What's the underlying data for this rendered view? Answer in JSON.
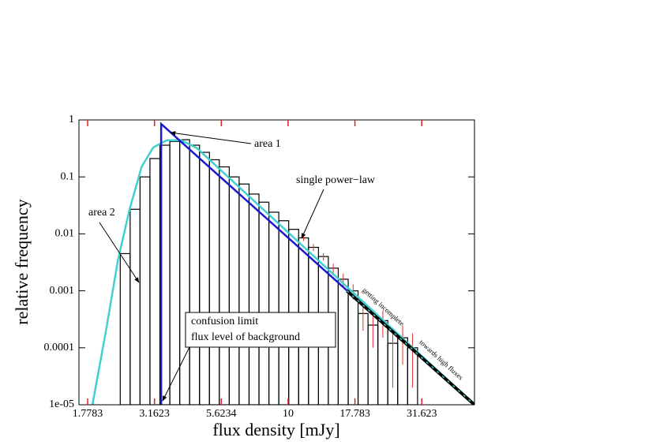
{
  "chart_data": {
    "type": "histogram",
    "xlabel": "flux density [mJy]",
    "ylabel": "relative frequency",
    "xscale": "log",
    "yscale": "log",
    "xlim": [
      1.65,
      49.8
    ],
    "ylim": [
      1e-05,
      1
    ],
    "xticks": [
      1.7783,
      3.1623,
      5.6234,
      10,
      17.783,
      31.623
    ],
    "yticks": [
      1,
      0.1,
      0.01,
      0.001,
      0.0001,
      {
        "value": 1e-05,
        "label": "1e-05"
      }
    ],
    "tick_color": "#e02020",
    "bins": [
      2.355,
      2.565,
      2.793,
      3.042,
      3.314,
      3.609,
      3.93,
      4.28,
      4.662,
      5.078,
      5.53,
      6.023,
      6.559,
      7.144,
      7.78,
      8.474,
      9.228,
      10.05,
      10.95,
      11.92,
      12.99,
      14.14,
      15.4,
      16.78,
      18.27,
      19.9,
      21.67,
      23.6,
      25.7,
      28.0,
      30.5
    ],
    "counts": [
      0.0045,
      0.027,
      0.1,
      0.21,
      0.36,
      0.42,
      0.45,
      0.36,
      0.27,
      0.2,
      0.15,
      0.1,
      0.075,
      0.05,
      0.036,
      0.024,
      0.017,
      0.012,
      0.0085,
      0.0058,
      0.004,
      0.0025,
      0.0016,
      0.001,
      0.0004,
      0.00025,
      0.0003,
      0.00012,
      0.00015,
      0.0001
    ],
    "errors": [
      null,
      null,
      null,
      null,
      null,
      null,
      null,
      null,
      null,
      null,
      null,
      null,
      null,
      null,
      null,
      null,
      null,
      null,
      0.001,
      0.0008,
      0.0006,
      0.0005,
      0.0004,
      0.0003,
      0.0002,
      0.00015,
      0.00015,
      0.0001,
      0.0001,
      8e-05
    ],
    "color": "#000000",
    "error_color": "#e03030",
    "lines": [
      {
        "color": "#40d0d0",
        "x": [
          1.853,
          2.083,
          2.307,
          2.553,
          2.83,
          3.13,
          3.52,
          3.98,
          4.56,
          49.8
        ],
        "values": [
          1e-05,
          0.0002,
          0.0034,
          0.027,
          0.15,
          0.33,
          0.44,
          0.44,
          0.32,
          1e-05
        ]
      },
      {
        "color": "#1a1acc",
        "x": [
          3.35,
          3.35,
          49.8
        ],
        "values": [
          1e-05,
          0.85,
          1e-05
        ]
      },
      {
        "color": "#000000",
        "dash": true,
        "x": [
          16.6,
          49.8
        ],
        "values": [
          0.001,
          1e-05
        ]
      }
    ],
    "annotations": [
      "area 1",
      "single power−law",
      "area 2",
      "confusion limit",
      "flux level of background",
      "getting incomplete",
      "towards high fluxes"
    ]
  }
}
